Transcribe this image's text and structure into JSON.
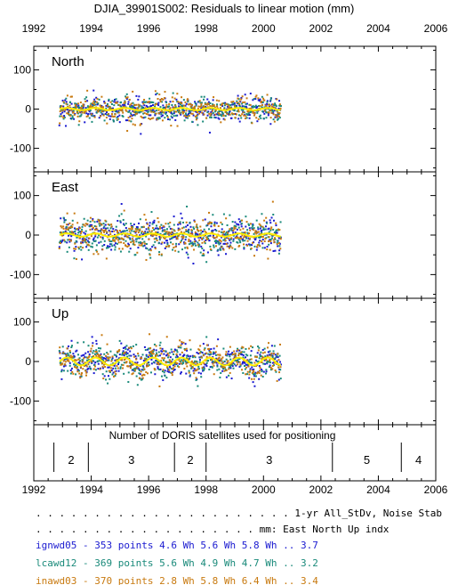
{
  "title": "DJIA_39901S002: Residuals to linear motion (mm)",
  "x_ticks": [
    "1992",
    "1994",
    "1996",
    "1998",
    "2000",
    "2002",
    "2004",
    "2006"
  ],
  "y_ticks": [
    "100",
    "0",
    "-100"
  ],
  "colors": {
    "ignwd05": "#1a1ad0",
    "lcawd12": "#1a8a7a",
    "inawd03": "#c87a10",
    "fit": "#ffee00",
    "frame": "#000000"
  },
  "chart_data": [
    {
      "type": "scatter",
      "panel": "North",
      "label": "North",
      "x_range": [
        1992,
        2006
      ],
      "ylim": [
        -160,
        160
      ],
      "grid": false,
      "series": [
        {
          "name": "ignwd05",
          "points": 353,
          "x_start": 1992.9,
          "x_end": 2000.6,
          "stdev_mm": 15
        },
        {
          "name": "lcawd12",
          "points": 369,
          "x_start": 1992.9,
          "x_end": 2000.6,
          "stdev_mm": 15
        },
        {
          "name": "inawd03",
          "points": 370,
          "x_start": 1992.9,
          "x_end": 2000.6,
          "stdev_mm": 15
        }
      ],
      "fit_curve": {
        "x_start": 1992.9,
        "x_end": 2000.6,
        "amplitude_mm": 3,
        "period_years": 1
      }
    },
    {
      "type": "scatter",
      "panel": "East",
      "label": "East",
      "x_range": [
        1992,
        2006
      ],
      "ylim": [
        -160,
        160
      ],
      "grid": false,
      "series": [
        {
          "name": "ignwd05",
          "points": 353,
          "x_start": 1992.9,
          "x_end": 2000.6,
          "stdev_mm": 22
        },
        {
          "name": "lcawd12",
          "points": 369,
          "x_start": 1992.9,
          "x_end": 2000.6,
          "stdev_mm": 22
        },
        {
          "name": "inawd03",
          "points": 370,
          "x_start": 1992.9,
          "x_end": 2000.6,
          "stdev_mm": 22
        }
      ],
      "fit_curve": {
        "x_start": 1992.9,
        "x_end": 2000.6,
        "amplitude_mm": 4,
        "period_years": 1
      }
    },
    {
      "type": "scatter",
      "panel": "Up",
      "label": "Up",
      "x_range": [
        1992,
        2006
      ],
      "ylim": [
        -160,
        160
      ],
      "grid": false,
      "series": [
        {
          "name": "ignwd05",
          "points": 353,
          "x_start": 1992.9,
          "x_end": 2000.6,
          "stdev_mm": 20
        },
        {
          "name": "lcawd12",
          "points": 369,
          "x_start": 1992.9,
          "x_end": 2000.6,
          "stdev_mm": 20
        },
        {
          "name": "inawd03",
          "points": 370,
          "x_start": 1992.9,
          "x_end": 2000.6,
          "stdev_mm": 20
        }
      ],
      "fit_curve": {
        "x_start": 1992.9,
        "x_end": 2000.6,
        "amplitude_mm": 10,
        "period_years": 1
      }
    },
    {
      "type": "table",
      "panel": "satellites",
      "title": "Number of DORIS satellites used for positioning",
      "x_range": [
        1992,
        2006
      ],
      "segments": [
        {
          "start": 1992.7,
          "end": 1993.9,
          "value": "2"
        },
        {
          "start": 1993.9,
          "end": 1996.9,
          "value": "3"
        },
        {
          "start": 1996.9,
          "end": 1998.0,
          "value": "2"
        },
        {
          "start": 1998.0,
          "end": 2002.4,
          "value": "3"
        },
        {
          "start": 2002.4,
          "end": 2004.8,
          "value": "5"
        },
        {
          "start": 2004.8,
          "end": 2006.0,
          "value": "4"
        }
      ]
    }
  ],
  "stats_table": {
    "header1": ". . . . . . . . . . . . . . . . . . . . . . 1-yr All_StDv, Noise       Stab",
    "header2": ". . . . . . . . . . . . . . . . . . . mm:   East  North    Up        indx",
    "rows": [
      {
        "text": "ignwd05 - 353 points   4.6 Wh  5.6 Wh  5.8 Wh ..  3.7",
        "series": "ignwd05"
      },
      {
        "text": "lcawd12 - 369 points   5.6 Wh  4.9 Wh  4.7 Wh ..  3.2",
        "series": "lcawd12"
      },
      {
        "text": "inawd03 - 370 points   2.8 Wh  5.8 Wh  6.4 Wh ..  3.4",
        "series": "inawd03"
      }
    ]
  }
}
